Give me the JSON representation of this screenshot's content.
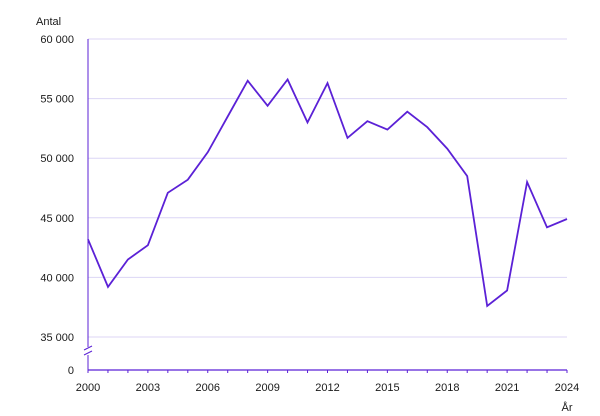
{
  "chart_data": {
    "type": "line",
    "ylabel": "Antal",
    "xlabel": "År",
    "x": [
      2000,
      2001,
      2002,
      2003,
      2004,
      2005,
      2006,
      2007,
      2008,
      2009,
      2010,
      2011,
      2012,
      2013,
      2014,
      2015,
      2016,
      2017,
      2018,
      2019,
      2020,
      2021,
      2022,
      2023,
      2024
    ],
    "series": [
      {
        "values": [
          43200,
          39200,
          41500,
          42700,
          47100,
          48200,
          50500,
          53500,
          56500,
          54400,
          56600,
          53000,
          56300,
          51700,
          53100,
          52400,
          53900,
          52600,
          50800,
          48500,
          37600,
          38900,
          48000,
          44200,
          44900
        ]
      }
    ],
    "xlim": [
      2000,
      2024
    ],
    "ylim": [
      35000,
      60000
    ],
    "y_axis_break": true,
    "y_ticks": [
      0,
      35000,
      40000,
      45000,
      50000,
      55000,
      60000
    ],
    "y_tick_labels": [
      "0",
      "35 000",
      "40 000",
      "45 000",
      "50 000",
      "55 000",
      "60 000"
    ],
    "x_ticks": [
      2000,
      2003,
      2006,
      2009,
      2012,
      2015,
      2018,
      2021,
      2024
    ],
    "x_tick_labels": [
      "2000",
      "2003",
      "2006",
      "2009",
      "2012",
      "2015",
      "2018",
      "2021",
      "2024"
    ],
    "grid": true,
    "colors": {
      "line": "#5b21d6",
      "axis": "#5b21d6",
      "grid": "#dcd6f5",
      "text": "#1a1a1a"
    }
  }
}
